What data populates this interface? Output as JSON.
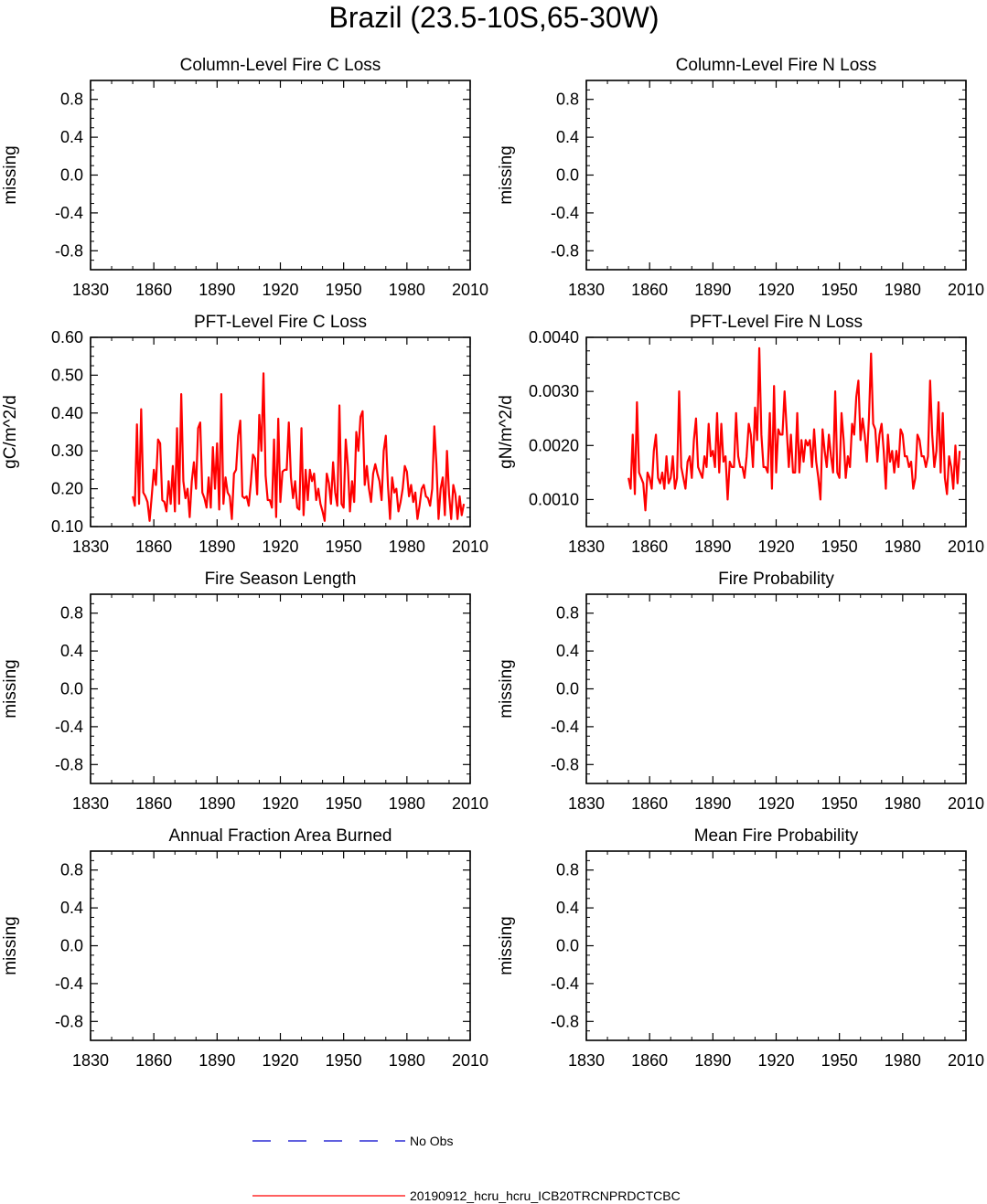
{
  "figure": {
    "title": "Brazil (23.5-10S,65-30W)"
  },
  "chart_data": [
    {
      "type": "line",
      "title": "Column-Level Fire C Loss",
      "ylabel": "missing",
      "xlim": [
        1830,
        2010
      ],
      "ylim": [
        -1.0,
        1.0
      ],
      "xticks": [
        "1830",
        "1860",
        "1890",
        "1920",
        "1950",
        "1980",
        "2010"
      ],
      "yticks": [
        -0.8,
        -0.4,
        0.0,
        0.4,
        0.8
      ],
      "ytick_labels": [
        "-0.8",
        "-0.4",
        "0.0",
        "0.4",
        "0.8"
      ],
      "series": []
    },
    {
      "type": "line",
      "title": "Column-Level Fire N Loss",
      "ylabel": "missing",
      "xlim": [
        1830,
        2010
      ],
      "ylim": [
        -1.0,
        1.0
      ],
      "xticks": [
        "1830",
        "1860",
        "1890",
        "1920",
        "1950",
        "1980",
        "2010"
      ],
      "yticks": [
        -0.8,
        -0.4,
        0.0,
        0.4,
        0.8
      ],
      "ytick_labels": [
        "-0.8",
        "-0.4",
        "0.0",
        "0.4",
        "0.8"
      ],
      "series": []
    },
    {
      "type": "line",
      "title": "PFT-Level Fire C Loss",
      "ylabel": "gC/m^2/d",
      "xlim": [
        1830,
        2010
      ],
      "ylim": [
        0.1,
        0.6
      ],
      "xticks": [
        "1830",
        "1860",
        "1890",
        "1920",
        "1950",
        "1980",
        "2010"
      ],
      "yticks": [
        0.1,
        0.2,
        0.3,
        0.4,
        0.5,
        0.6
      ],
      "ytick_labels": [
        "0.10",
        "0.20",
        "0.30",
        "0.40",
        "0.50",
        "0.60"
      ],
      "series": [
        {
          "name": "20190912_hcru_hcru_ICB20TRCNPRDCTCBC",
          "color": "#ff0000",
          "x_start": 1850,
          "values": [
            0.18,
            0.155,
            0.37,
            0.16,
            0.41,
            0.19,
            0.18,
            0.165,
            0.115,
            0.18,
            0.25,
            0.21,
            0.33,
            0.32,
            0.17,
            0.165,
            0.14,
            0.22,
            0.16,
            0.26,
            0.14,
            0.36,
            0.16,
            0.45,
            0.22,
            0.175,
            0.2,
            0.125,
            0.22,
            0.27,
            0.2,
            0.36,
            0.375,
            0.19,
            0.175,
            0.15,
            0.23,
            0.15,
            0.31,
            0.2,
            0.32,
            0.145,
            0.45,
            0.16,
            0.23,
            0.19,
            0.18,
            0.12,
            0.24,
            0.25,
            0.34,
            0.38,
            0.18,
            0.175,
            0.18,
            0.155,
            0.215,
            0.29,
            0.28,
            0.185,
            0.395,
            0.3,
            0.505,
            0.235,
            0.17,
            0.17,
            0.15,
            0.33,
            0.125,
            0.385,
            0.165,
            0.245,
            0.25,
            0.25,
            0.375,
            0.23,
            0.175,
            0.22,
            0.15,
            0.145,
            0.36,
            0.13,
            0.25,
            0.17,
            0.25,
            0.22,
            0.24,
            0.17,
            0.2,
            0.16,
            0.14,
            0.115,
            0.24,
            0.215,
            0.16,
            0.27,
            0.19,
            0.155,
            0.42,
            0.16,
            0.15,
            0.33,
            0.26,
            0.14,
            0.22,
            0.165,
            0.35,
            0.3,
            0.39,
            0.405,
            0.21,
            0.26,
            0.2,
            0.165,
            0.24,
            0.265,
            0.24,
            0.22,
            0.17,
            0.3,
            0.34,
            0.21,
            0.12,
            0.23,
            0.19,
            0.2,
            0.14,
            0.165,
            0.2,
            0.26,
            0.245,
            0.18,
            0.21,
            0.165,
            0.19,
            0.12,
            0.155,
            0.2,
            0.21,
            0.18,
            0.175,
            0.155,
            0.2,
            0.365,
            0.265,
            0.12,
            0.2,
            0.23,
            0.13,
            0.3,
            0.185,
            0.12,
            0.21,
            0.185,
            0.12,
            0.18,
            0.13,
            0.16
          ]
        }
      ]
    },
    {
      "type": "line",
      "title": "PFT-Level Fire N Loss",
      "ylabel": "gN/m^2/d",
      "xlim": [
        1830,
        2010
      ],
      "ylim": [
        0.0005,
        0.004
      ],
      "xticks": [
        "1830",
        "1860",
        "1890",
        "1920",
        "1950",
        "1980",
        "2010"
      ],
      "yticks": [
        0.001,
        0.002,
        0.003,
        0.004
      ],
      "ytick_labels": [
        "0.0010",
        "0.0020",
        "0.0030",
        "0.0040"
      ],
      "series": [
        {
          "name": "20190912_hcru_hcru_ICB20TRCNPRDCTCBC",
          "color": "#ff0000",
          "x_start": 1850,
          "values": [
            0.0014,
            0.0012,
            0.0022,
            0.0011,
            0.0028,
            0.0015,
            0.0014,
            0.0013,
            0.0008,
            0.0015,
            0.0014,
            0.0012,
            0.0019,
            0.0022,
            0.0014,
            0.0013,
            0.0015,
            0.0012,
            0.0018,
            0.0013,
            0.0014,
            0.0018,
            0.0012,
            0.0014,
            0.003,
            0.0016,
            0.0014,
            0.0012,
            0.0017,
            0.0018,
            0.0014,
            0.0021,
            0.0025,
            0.0016,
            0.0015,
            0.0014,
            0.0018,
            0.0016,
            0.0024,
            0.0018,
            0.0019,
            0.0016,
            0.0026,
            0.0015,
            0.0024,
            0.0017,
            0.0018,
            0.001,
            0.0017,
            0.0016,
            0.0016,
            0.0026,
            0.0018,
            0.0016,
            0.0016,
            0.0014,
            0.0018,
            0.0024,
            0.0022,
            0.0016,
            0.0027,
            0.0021,
            0.0038,
            0.0022,
            0.0016,
            0.0016,
            0.0015,
            0.0026,
            0.0012,
            0.0031,
            0.0015,
            0.0023,
            0.0022,
            0.0022,
            0.003,
            0.0023,
            0.0016,
            0.0022,
            0.0015,
            0.0015,
            0.0026,
            0.0015,
            0.0021,
            0.0017,
            0.0021,
            0.002,
            0.0021,
            0.0016,
            0.0023,
            0.0017,
            0.0014,
            0.001,
            0.0023,
            0.0019,
            0.0016,
            0.0022,
            0.0018,
            0.0015,
            0.003,
            0.0015,
            0.0014,
            0.0026,
            0.0021,
            0.0014,
            0.0018,
            0.0016,
            0.0024,
            0.0022,
            0.0029,
            0.0032,
            0.0021,
            0.0025,
            0.0022,
            0.0017,
            0.0025,
            0.0037,
            0.0024,
            0.0023,
            0.0017,
            0.0022,
            0.0024,
            0.0019,
            0.0012,
            0.0022,
            0.0017,
            0.0019,
            0.0015,
            0.0019,
            0.0016,
            0.0023,
            0.0022,
            0.0018,
            0.0018,
            0.0016,
            0.0017,
            0.0012,
            0.0014,
            0.0022,
            0.0021,
            0.0018,
            0.0018,
            0.0016,
            0.0018,
            0.0032,
            0.0022,
            0.0016,
            0.0019,
            0.0028,
            0.0015,
            0.0026,
            0.0014,
            0.0011,
            0.0018,
            0.0016,
            0.0012,
            0.002,
            0.0013,
            0.0019
          ]
        }
      ]
    },
    {
      "type": "line",
      "title": "Fire Season Length",
      "ylabel": "missing",
      "xlim": [
        1830,
        2010
      ],
      "ylim": [
        -1.0,
        1.0
      ],
      "xticks": [
        "1830",
        "1860",
        "1890",
        "1920",
        "1950",
        "1980",
        "2010"
      ],
      "yticks": [
        -0.8,
        -0.4,
        0.0,
        0.4,
        0.8
      ],
      "ytick_labels": [
        "-0.8",
        "-0.4",
        "0.0",
        "0.4",
        "0.8"
      ],
      "series": []
    },
    {
      "type": "line",
      "title": "Fire Probability",
      "ylabel": "missing",
      "xlim": [
        1830,
        2010
      ],
      "ylim": [
        -1.0,
        1.0
      ],
      "xticks": [
        "1830",
        "1860",
        "1890",
        "1920",
        "1950",
        "1980",
        "2010"
      ],
      "yticks": [
        -0.8,
        -0.4,
        0.0,
        0.4,
        0.8
      ],
      "ytick_labels": [
        "-0.8",
        "-0.4",
        "0.0",
        "0.4",
        "0.8"
      ],
      "series": []
    },
    {
      "type": "line",
      "title": "Annual Fraction Area Burned",
      "ylabel": "missing",
      "xlim": [
        1830,
        2010
      ],
      "ylim": [
        -1.0,
        1.0
      ],
      "xticks": [
        "1830",
        "1860",
        "1890",
        "1920",
        "1950",
        "1980",
        "2010"
      ],
      "yticks": [
        -0.8,
        -0.4,
        0.0,
        0.4,
        0.8
      ],
      "ytick_labels": [
        "-0.8",
        "-0.4",
        "0.0",
        "0.4",
        "0.8"
      ],
      "series": []
    },
    {
      "type": "line",
      "title": "Mean Fire Probability",
      "ylabel": "missing",
      "xlim": [
        1830,
        2010
      ],
      "ylim": [
        -1.0,
        1.0
      ],
      "xticks": [
        "1830",
        "1860",
        "1890",
        "1920",
        "1950",
        "1980",
        "2010"
      ],
      "yticks": [
        -0.8,
        -0.4,
        0.0,
        0.4,
        0.8
      ],
      "ytick_labels": [
        "-0.8",
        "-0.4",
        "0.0",
        "0.4",
        "0.8"
      ],
      "series": []
    }
  ],
  "legend": {
    "entries": [
      {
        "label": "No Obs",
        "color": "#0000cc",
        "style": "dashed"
      },
      {
        "label": "20190912_hcru_hcru_ICB20TRCNPRDCTCBC",
        "color": "#ff0000",
        "style": "solid"
      }
    ]
  }
}
